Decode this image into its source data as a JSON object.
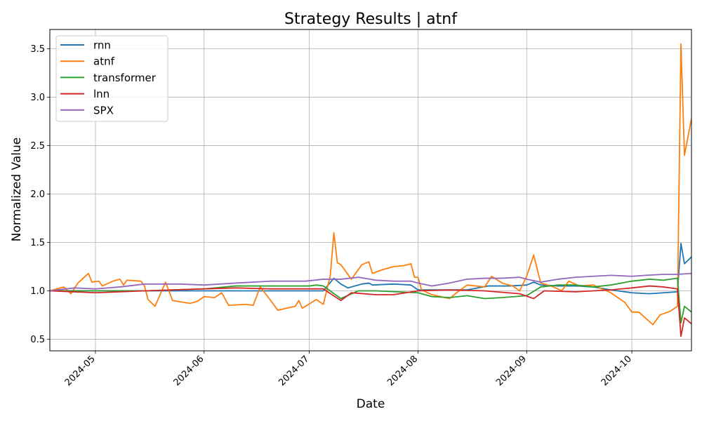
{
  "chart_data": {
    "type": "line",
    "title": "Strategy Results | atnf",
    "xlabel": "Date",
    "ylabel": "Normalized Value",
    "x_start": "2024-04-18",
    "x_end": "2024-10-18",
    "ylim": [
      0.38,
      3.7
    ],
    "yticks": [
      0.5,
      1.0,
      1.5,
      2.0,
      2.5,
      3.0,
      3.5
    ],
    "ytick_labels": [
      "0.5",
      "1.0",
      "1.5",
      "2.0",
      "2.5",
      "3.0",
      "3.5"
    ],
    "xticks": [
      "2024-05-01",
      "2024-06-01",
      "2024-07-01",
      "2024-08-01",
      "2024-09-01",
      "2024-10-01"
    ],
    "xtick_labels": [
      "2024-05",
      "2024-06",
      "2024-07",
      "2024-08",
      "2024-09",
      "2024-10"
    ],
    "grid": true,
    "legend_position": "upper-left",
    "series": [
      {
        "name": "rnn",
        "color": "#1f77b4",
        "points": [
          [
            "2024-04-18",
            1.0
          ],
          [
            "2024-05-01",
            1.0
          ],
          [
            "2024-05-15",
            1.0
          ],
          [
            "2024-06-01",
            1.0
          ],
          [
            "2024-06-15",
            1.0
          ],
          [
            "2024-07-01",
            1.0
          ],
          [
            "2024-07-05",
            1.0
          ],
          [
            "2024-07-08",
            1.13
          ],
          [
            "2024-07-10",
            1.07
          ],
          [
            "2024-07-12",
            1.03
          ],
          [
            "2024-07-16",
            1.07
          ],
          [
            "2024-07-18",
            1.08
          ],
          [
            "2024-07-19",
            1.06
          ],
          [
            "2024-07-25",
            1.07
          ],
          [
            "2024-07-30",
            1.06
          ],
          [
            "2024-08-01",
            1.01
          ],
          [
            "2024-08-05",
            1.01
          ],
          [
            "2024-08-15",
            1.01
          ],
          [
            "2024-08-21",
            1.05
          ],
          [
            "2024-08-27",
            1.05
          ],
          [
            "2024-09-01",
            1.06
          ],
          [
            "2024-09-03",
            1.09
          ],
          [
            "2024-09-05",
            1.06
          ],
          [
            "2024-09-10",
            1.05
          ],
          [
            "2024-09-15",
            1.05
          ],
          [
            "2024-09-20",
            1.04
          ],
          [
            "2024-09-25",
            1.01
          ],
          [
            "2024-10-01",
            0.98
          ],
          [
            "2024-10-06",
            0.97
          ],
          [
            "2024-10-10",
            0.98
          ],
          [
            "2024-10-14",
            0.99
          ],
          [
            "2024-10-15",
            1.49
          ],
          [
            "2024-10-16",
            1.28
          ],
          [
            "2024-10-18",
            1.35
          ]
        ]
      },
      {
        "name": "atnf",
        "color": "#ff7f0e",
        "points": [
          [
            "2024-04-18",
            1.0
          ],
          [
            "2024-04-22",
            1.04
          ],
          [
            "2024-04-24",
            0.97
          ],
          [
            "2024-04-26",
            1.08
          ],
          [
            "2024-04-29",
            1.18
          ],
          [
            "2024-04-30",
            1.09
          ],
          [
            "2024-05-02",
            1.1
          ],
          [
            "2024-05-03",
            1.05
          ],
          [
            "2024-05-06",
            1.1
          ],
          [
            "2024-05-08",
            1.12
          ],
          [
            "2024-05-09",
            1.06
          ],
          [
            "2024-05-10",
            1.11
          ],
          [
            "2024-05-14",
            1.1
          ],
          [
            "2024-05-15",
            1.05
          ],
          [
            "2024-05-16",
            0.91
          ],
          [
            "2024-05-18",
            0.84
          ],
          [
            "2024-05-21",
            1.09
          ],
          [
            "2024-05-23",
            0.9
          ],
          [
            "2024-05-28",
            0.87
          ],
          [
            "2024-05-30",
            0.89
          ],
          [
            "2024-06-01",
            0.94
          ],
          [
            "2024-06-04",
            0.93
          ],
          [
            "2024-06-06",
            0.98
          ],
          [
            "2024-06-08",
            0.85
          ],
          [
            "2024-06-13",
            0.86
          ],
          [
            "2024-06-15",
            0.85
          ],
          [
            "2024-06-17",
            1.04
          ],
          [
            "2024-06-20",
            0.9
          ],
          [
            "2024-06-22",
            0.8
          ],
          [
            "2024-06-27",
            0.84
          ],
          [
            "2024-06-28",
            0.9
          ],
          [
            "2024-06-29",
            0.82
          ],
          [
            "2024-07-03",
            0.91
          ],
          [
            "2024-07-05",
            0.86
          ],
          [
            "2024-07-07",
            1.16
          ],
          [
            "2024-07-08",
            1.6
          ],
          [
            "2024-07-09",
            1.29
          ],
          [
            "2024-07-10",
            1.27
          ],
          [
            "2024-07-13",
            1.12
          ],
          [
            "2024-07-16",
            1.27
          ],
          [
            "2024-07-18",
            1.3
          ],
          [
            "2024-07-19",
            1.18
          ],
          [
            "2024-07-22",
            1.22
          ],
          [
            "2024-07-25",
            1.25
          ],
          [
            "2024-07-28",
            1.26
          ],
          [
            "2024-07-30",
            1.28
          ],
          [
            "2024-07-31",
            1.14
          ],
          [
            "2024-08-01",
            1.14
          ],
          [
            "2024-08-02",
            1.01
          ],
          [
            "2024-08-05",
            0.96
          ],
          [
            "2024-08-10",
            0.92
          ],
          [
            "2024-08-12",
            0.98
          ],
          [
            "2024-08-15",
            1.06
          ],
          [
            "2024-08-20",
            1.04
          ],
          [
            "2024-08-22",
            1.15
          ],
          [
            "2024-08-25",
            1.08
          ],
          [
            "2024-08-28",
            1.05
          ],
          [
            "2024-08-30",
            1.0
          ],
          [
            "2024-09-01",
            1.15
          ],
          [
            "2024-09-03",
            1.37
          ],
          [
            "2024-09-05",
            1.08
          ],
          [
            "2024-09-08",
            1.05
          ],
          [
            "2024-09-11",
            1.0
          ],
          [
            "2024-09-13",
            1.1
          ],
          [
            "2024-09-16",
            1.05
          ],
          [
            "2024-09-20",
            1.06
          ],
          [
            "2024-09-25",
            0.98
          ],
          [
            "2024-09-29",
            0.88
          ],
          [
            "2024-10-01",
            0.78
          ],
          [
            "2024-10-03",
            0.78
          ],
          [
            "2024-10-07",
            0.65
          ],
          [
            "2024-10-09",
            0.75
          ],
          [
            "2024-10-12",
            0.79
          ],
          [
            "2024-10-14",
            0.84
          ],
          [
            "2024-10-15",
            3.55
          ],
          [
            "2024-10-16",
            2.4
          ],
          [
            "2024-10-18",
            2.78
          ]
        ]
      },
      {
        "name": "transformer",
        "color": "#2ca02c",
        "points": [
          [
            "2024-04-18",
            1.0
          ],
          [
            "2024-05-01",
            1.0
          ],
          [
            "2024-05-15",
            1.0
          ],
          [
            "2024-06-01",
            1.02
          ],
          [
            "2024-06-10",
            1.05
          ],
          [
            "2024-06-20",
            1.05
          ],
          [
            "2024-07-01",
            1.05
          ],
          [
            "2024-07-03",
            1.06
          ],
          [
            "2024-07-05",
            1.05
          ],
          [
            "2024-07-10",
            0.92
          ],
          [
            "2024-07-15",
            1.0
          ],
          [
            "2024-07-20",
            1.0
          ],
          [
            "2024-08-01",
            0.98
          ],
          [
            "2024-08-05",
            0.94
          ],
          [
            "2024-08-10",
            0.93
          ],
          [
            "2024-08-15",
            0.95
          ],
          [
            "2024-08-20",
            0.92
          ],
          [
            "2024-08-25",
            0.93
          ],
          [
            "2024-09-01",
            0.95
          ],
          [
            "2024-09-05",
            1.04
          ],
          [
            "2024-09-10",
            1.06
          ],
          [
            "2024-09-15",
            1.06
          ],
          [
            "2024-09-20",
            1.04
          ],
          [
            "2024-09-25",
            1.06
          ],
          [
            "2024-10-01",
            1.1
          ],
          [
            "2024-10-06",
            1.12
          ],
          [
            "2024-10-10",
            1.11
          ],
          [
            "2024-10-14",
            1.13
          ],
          [
            "2024-10-15",
            0.67
          ],
          [
            "2024-10-16",
            0.84
          ],
          [
            "2024-10-18",
            0.78
          ]
        ]
      },
      {
        "name": "lnn",
        "color": "#d62728",
        "points": [
          [
            "2024-04-18",
            1.0
          ],
          [
            "2024-05-01",
            0.98
          ],
          [
            "2024-05-15",
            1.0
          ],
          [
            "2024-06-01",
            1.02
          ],
          [
            "2024-06-10",
            1.03
          ],
          [
            "2024-06-20",
            1.02
          ],
          [
            "2024-07-01",
            1.02
          ],
          [
            "2024-07-05",
            1.02
          ],
          [
            "2024-07-10",
            0.9
          ],
          [
            "2024-07-13",
            0.98
          ],
          [
            "2024-07-20",
            0.96
          ],
          [
            "2024-07-25",
            0.96
          ],
          [
            "2024-08-01",
            1.0
          ],
          [
            "2024-08-10",
            1.01
          ],
          [
            "2024-08-20",
            1.0
          ],
          [
            "2024-08-30",
            0.97
          ],
          [
            "2024-09-03",
            0.92
          ],
          [
            "2024-09-06",
            1.0
          ],
          [
            "2024-09-15",
            0.99
          ],
          [
            "2024-09-20",
            1.0
          ],
          [
            "2024-09-25",
            1.01
          ],
          [
            "2024-10-01",
            1.03
          ],
          [
            "2024-10-06",
            1.05
          ],
          [
            "2024-10-10",
            1.04
          ],
          [
            "2024-10-14",
            1.02
          ],
          [
            "2024-10-15",
            0.53
          ],
          [
            "2024-10-16",
            0.72
          ],
          [
            "2024-10-18",
            0.66
          ]
        ]
      },
      {
        "name": "SPX",
        "color": "#9467bd",
        "points": [
          [
            "2024-04-18",
            1.0
          ],
          [
            "2024-04-25",
            1.03
          ],
          [
            "2024-05-01",
            1.02
          ],
          [
            "2024-05-08",
            1.04
          ],
          [
            "2024-05-15",
            1.07
          ],
          [
            "2024-05-25",
            1.07
          ],
          [
            "2024-06-01",
            1.06
          ],
          [
            "2024-06-10",
            1.08
          ],
          [
            "2024-06-20",
            1.1
          ],
          [
            "2024-06-30",
            1.1
          ],
          [
            "2024-07-05",
            1.12
          ],
          [
            "2024-07-10",
            1.12
          ],
          [
            "2024-07-15",
            1.14
          ],
          [
            "2024-07-20",
            1.11
          ],
          [
            "2024-07-25",
            1.1
          ],
          [
            "2024-07-30",
            1.1
          ],
          [
            "2024-08-01",
            1.08
          ],
          [
            "2024-08-05",
            1.05
          ],
          [
            "2024-08-10",
            1.08
          ],
          [
            "2024-08-15",
            1.12
          ],
          [
            "2024-08-20",
            1.13
          ],
          [
            "2024-08-25",
            1.13
          ],
          [
            "2024-08-30",
            1.14
          ],
          [
            "2024-09-01",
            1.12
          ],
          [
            "2024-09-05",
            1.09
          ],
          [
            "2024-09-10",
            1.12
          ],
          [
            "2024-09-15",
            1.14
          ],
          [
            "2024-09-20",
            1.15
          ],
          [
            "2024-09-25",
            1.16
          ],
          [
            "2024-10-01",
            1.15
          ],
          [
            "2024-10-05",
            1.16
          ],
          [
            "2024-10-10",
            1.17
          ],
          [
            "2024-10-14",
            1.17
          ],
          [
            "2024-10-18",
            1.18
          ]
        ]
      }
    ]
  }
}
